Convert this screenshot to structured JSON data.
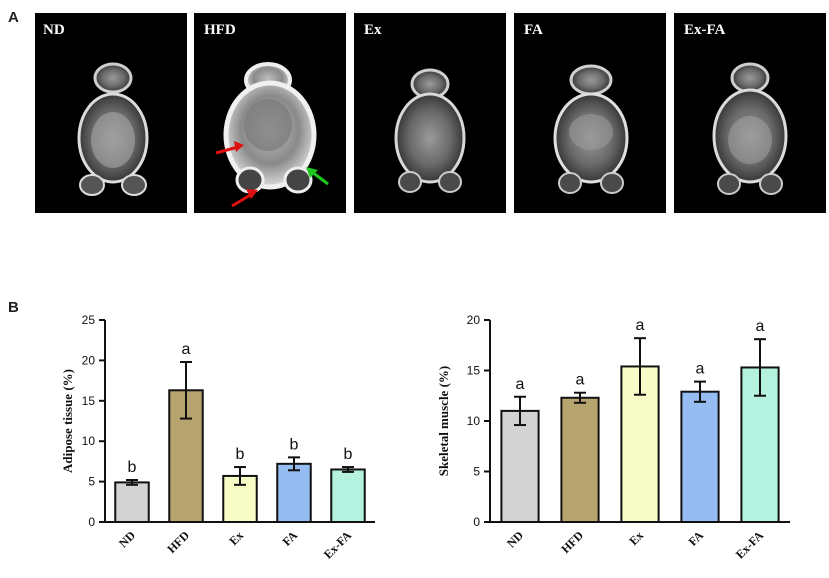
{
  "panel_a": {
    "label": "A",
    "images": [
      {
        "label": "ND"
      },
      {
        "label": "HFD"
      },
      {
        "label": "Ex"
      },
      {
        "label": "FA"
      },
      {
        "label": "Ex-FA"
      }
    ]
  },
  "panel_b": {
    "label": "B"
  },
  "chart_data": [
    {
      "type": "bar",
      "ylabel": "Adipose tissue (%)",
      "xlabel": "",
      "ylim": [
        0,
        25
      ],
      "yticks": [
        0,
        5,
        10,
        15,
        20,
        25
      ],
      "categories": [
        "ND",
        "HFD",
        "Ex",
        "FA",
        "Ex-FA"
      ],
      "values": [
        4.9,
        16.3,
        5.7,
        7.2,
        6.5
      ],
      "errors": [
        0.3,
        3.5,
        1.1,
        0.8,
        0.3
      ],
      "significance": [
        "b",
        "a",
        "b",
        "b",
        "b"
      ],
      "colors": [
        "#d3d3d3",
        "#b5a46e",
        "#f7fcc6",
        "#96bdf2",
        "#b4f1df"
      ]
    },
    {
      "type": "bar",
      "ylabel": "Skeletal muscle (%)",
      "xlabel": "",
      "ylim": [
        0,
        20
      ],
      "yticks": [
        0,
        5,
        10,
        15,
        20
      ],
      "categories": [
        "ND",
        "HFD",
        "Ex",
        "FA",
        "Ex-FA"
      ],
      "values": [
        11.0,
        12.3,
        15.4,
        12.9,
        15.3
      ],
      "errors": [
        1.4,
        0.5,
        2.8,
        1.0,
        2.8
      ],
      "significance": [
        "a",
        "a",
        "a",
        "a",
        "a"
      ],
      "colors": [
        "#d3d3d3",
        "#b5a46e",
        "#f7fcc6",
        "#96bdf2",
        "#b4f1df"
      ]
    }
  ]
}
